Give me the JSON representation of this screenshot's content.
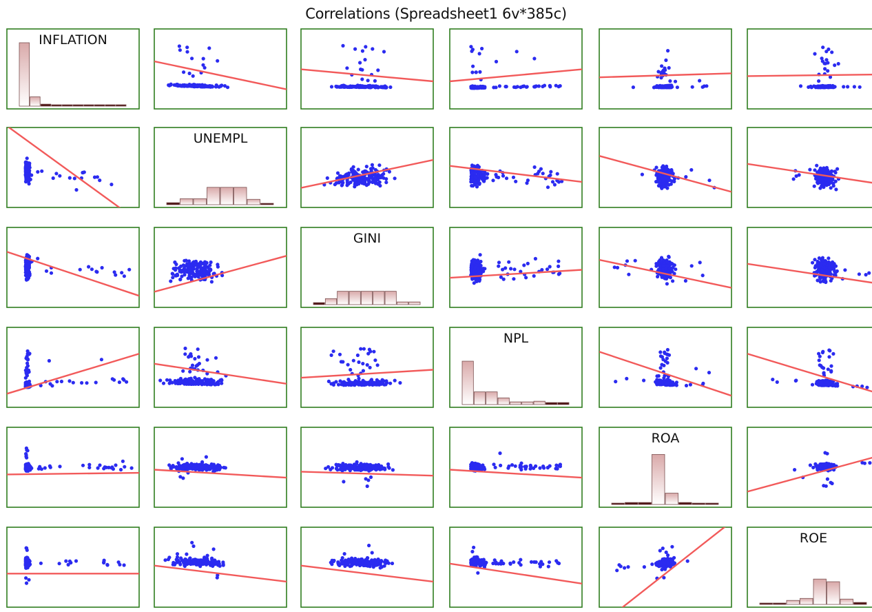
{
  "title": "Correlations (Spreadsheet1 6v*385c)",
  "colors": {
    "panel_border": "#2e7d1e",
    "point": "#2b2bf0",
    "fit_line": "#f25a5a",
    "bar_top": "#d9a9a9",
    "bar_bottom": "#ffffff",
    "bar_border": "#7a5050",
    "bar_dark": "#4a1010"
  },
  "chart_data": {
    "type": "scatter",
    "subtype": "scatterplot-matrix",
    "variables": [
      "INFLATION",
      "UNEMPL",
      "GINI",
      "NPL",
      "ROA",
      "ROE"
    ],
    "diagonal": "histogram",
    "off_diagonal": "scatter with linear fit",
    "histograms": {
      "INFLATION": [
        9.5,
        1.4,
        0.3,
        0.1,
        0.1,
        0.1,
        0.1,
        0.1,
        0.1,
        0.1
      ],
      "UNEMPL": [
        0.3,
        0.9,
        0.9,
        2.6,
        2.6,
        2.6,
        0.8,
        0.2
      ],
      "GINI": [
        0.3,
        0.9,
        2.0,
        2.0,
        2.0,
        2.0,
        2.0,
        0.4,
        0.4
      ],
      "NPL": [
        6.5,
        1.9,
        1.9,
        1.0,
        0.4,
        0.4,
        0.5,
        0.3,
        0.3
      ],
      "ROA": [
        0.2,
        0.3,
        0.3,
        7.5,
        1.7,
        0.3,
        0.1,
        0.1
      ],
      "ROE": [
        0.2,
        0.2,
        0.6,
        0.9,
        3.8,
        3.4,
        0.8,
        0.3
      ]
    },
    "fit_slopes": [
      [
        null,
        -0.35,
        -0.15,
        0.15,
        0.05,
        0.02
      ],
      [
        -1.2,
        null,
        0.35,
        -0.2,
        -0.45,
        -0.25
      ],
      [
        -0.55,
        0.45,
        null,
        0.1,
        -0.35,
        -0.25
      ],
      [
        0.5,
        -0.25,
        0.1,
        null,
        -0.55,
        -0.5
      ],
      [
        0.02,
        -0.1,
        -0.05,
        -0.1,
        null,
        0.45
      ],
      [
        0.0,
        -0.2,
        -0.2,
        -0.25,
        1.3,
        null
      ]
    ]
  }
}
